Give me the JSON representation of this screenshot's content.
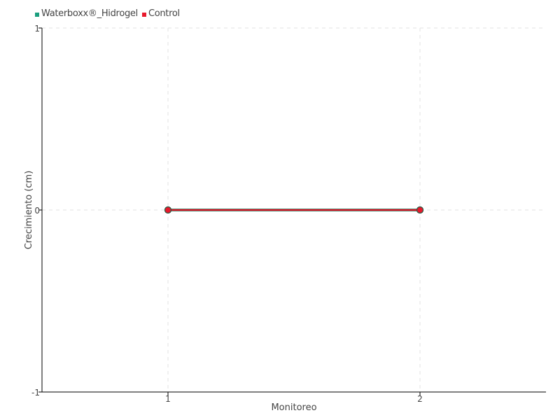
{
  "chart_data": {
    "type": "line",
    "title": "",
    "xlabel": "Monitoreo",
    "ylabel": "Crecimiento (cm)",
    "x": [
      1,
      2
    ],
    "xlim": [
      0.5,
      2.5
    ],
    "ylim": [
      -1,
      1
    ],
    "xticks": [
      1,
      2
    ],
    "yticks": [
      -1,
      0,
      1
    ],
    "grid": true,
    "legend_position": "top-left",
    "series": [
      {
        "name": "Waterboxx®_Hidrogel",
        "values": [
          0,
          0
        ],
        "color": "#1a9e7e"
      },
      {
        "name": "Control",
        "values": [
          0,
          0
        ],
        "color": "#e8192c"
      }
    ]
  }
}
